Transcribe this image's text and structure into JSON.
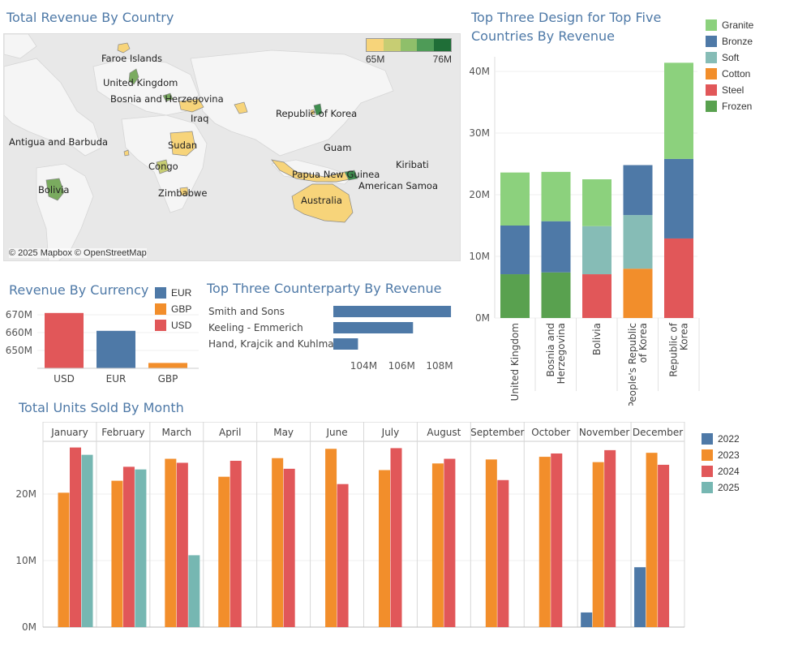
{
  "map": {
    "title": "Total Revenue By Country",
    "legend_min": "65M",
    "legend_max": "76M",
    "legend_colors": [
      "#f7d47a",
      "#c7cd73",
      "#8fbf6a",
      "#4e9b57",
      "#1f6e37"
    ],
    "attribution": "© 2025 Mapbox © OpenStreetMap",
    "labels": [
      "Faroe Islands",
      "United Kingdom",
      "Bosnia and Herzegovina",
      "Iraq",
      "Republic of Korea",
      "Antigua and Barbuda",
      "Sudan",
      "Guam",
      "Congo",
      "Kiribati",
      "Papua New Guinea",
      "Bolivia",
      "Zimbabwe",
      "American Samoa",
      "Australia"
    ]
  },
  "design": {
    "title": "Top Three Design for Top Five Countries By Revenue",
    "legend": [
      {
        "name": "Granite",
        "color": "#8cd17d"
      },
      {
        "name": "Bronze",
        "color": "#4e79a7"
      },
      {
        "name": "Soft",
        "color": "#86bcb6"
      },
      {
        "name": "Cotton",
        "color": "#f28e2b"
      },
      {
        "name": "Steel",
        "color": "#e15759"
      },
      {
        "name": "Frozen",
        "color": "#59a14f"
      }
    ]
  },
  "currency": {
    "title": "Revenue By Currency",
    "legend": [
      {
        "name": "EUR",
        "color": "#4e79a7"
      },
      {
        "name": "GBP",
        "color": "#f28e2b"
      },
      {
        "name": "USD",
        "color": "#e15759"
      }
    ]
  },
  "counterparty": {
    "title": "Top Three Counterparty By Revenue"
  },
  "units": {
    "title": "Total Units Sold By Month",
    "legend": [
      {
        "name": "2022",
        "color": "#4e79a7"
      },
      {
        "name": "2023",
        "color": "#f28e2b"
      },
      {
        "name": "2024",
        "color": "#e15759"
      },
      {
        "name": "2025",
        "color": "#76b7b2"
      }
    ]
  },
  "chart_data": [
    {
      "type": "bar",
      "id": "design",
      "stacked": true,
      "categories": [
        "United Kingdom",
        "Bosnia and Herzegovina",
        "Bolivia",
        "People's Republic of Korea",
        "Republic of Korea"
      ],
      "series": [
        {
          "name": "Frozen",
          "color": "#59a14f",
          "values": [
            7.1,
            7.4,
            0,
            0,
            0
          ]
        },
        {
          "name": "Steel",
          "color": "#e15759",
          "values": [
            0,
            0,
            7.1,
            0,
            12.9
          ]
        },
        {
          "name": "Cotton",
          "color": "#f28e2b",
          "values": [
            0,
            0,
            0,
            8.0,
            0
          ]
        },
        {
          "name": "Soft",
          "color": "#86bcb6",
          "values": [
            0,
            0,
            7.8,
            8.7,
            0
          ]
        },
        {
          "name": "Bronze",
          "color": "#4e79a7",
          "values": [
            7.9,
            8.3,
            0,
            8.1,
            12.9
          ]
        },
        {
          "name": "Granite",
          "color": "#8cd17d",
          "values": [
            8.6,
            8.0,
            7.6,
            0,
            15.6
          ]
        }
      ],
      "yticks": [
        "0M",
        "10M",
        "20M",
        "30M",
        "40M"
      ],
      "ylim": [
        0,
        42
      ]
    },
    {
      "type": "bar",
      "id": "currency",
      "categories": [
        "USD",
        "EUR",
        "GBP"
      ],
      "values": [
        671,
        661,
        643
      ],
      "colors": [
        "#e15759",
        "#4e79a7",
        "#f28e2b"
      ],
      "yticks": [
        "650M",
        "660M",
        "670M"
      ],
      "ytick_values": [
        650,
        660,
        670
      ],
      "ylim": [
        640,
        674
      ]
    },
    {
      "type": "bar",
      "id": "counterparty",
      "orientation": "horizontal",
      "categories": [
        "Smith and Sons",
        "Keeling - Emmerich",
        "Hand, Krajcik and Kuhlman"
      ],
      "values": [
        108.6,
        106.6,
        103.7
      ],
      "color": "#4e79a7",
      "xticks": [
        "104M",
        "106M",
        "108M"
      ],
      "xtick_values": [
        104,
        106,
        108
      ],
      "xlim": [
        102.4,
        108.9
      ]
    },
    {
      "type": "bar",
      "id": "units",
      "categories": [
        "January",
        "February",
        "March",
        "April",
        "May",
        "June",
        "July",
        "August",
        "September",
        "October",
        "November",
        "December"
      ],
      "series": [
        {
          "name": "2022",
          "color": "#4e79a7",
          "values": [
            0,
            0,
            0,
            0,
            0,
            0,
            0,
            0,
            0,
            0,
            2.2,
            9.0
          ]
        },
        {
          "name": "2023",
          "color": "#f28e2b",
          "values": [
            20.2,
            22.0,
            25.3,
            22.6,
            25.4,
            26.8,
            23.6,
            24.6,
            25.2,
            25.6,
            24.8,
            26.2
          ]
        },
        {
          "name": "2024",
          "color": "#e15759",
          "values": [
            27.0,
            24.1,
            24.7,
            25.0,
            23.8,
            21.5,
            26.9,
            25.3,
            22.1,
            26.1,
            26.6,
            24.4
          ]
        },
        {
          "name": "2025",
          "color": "#76b7b2",
          "values": [
            25.9,
            23.7,
            10.8,
            0,
            0,
            0,
            0,
            0,
            0,
            0,
            0,
            0
          ]
        }
      ],
      "yticks": [
        "0M",
        "10M",
        "20M"
      ],
      "ytick_values": [
        0,
        10,
        20
      ],
      "ylim": [
        0,
        30.5
      ]
    }
  ]
}
